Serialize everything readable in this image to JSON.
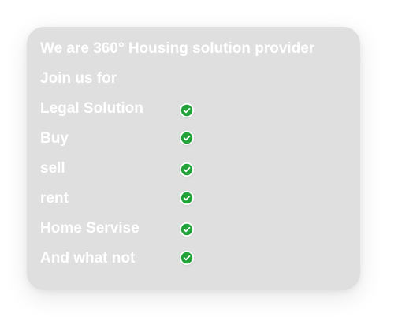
{
  "card": {
    "headline": "We are 360° Housing solution provider",
    "subhead": "Join us for",
    "items": [
      {
        "label": "Legal Solution",
        "icon": "check-circle-icon"
      },
      {
        "label": "Buy",
        "icon": "check-circle-icon"
      },
      {
        "label": "sell",
        "icon": "check-circle-icon"
      },
      {
        "label": "rent",
        "icon": "check-circle-icon"
      },
      {
        "label": "Home Servise",
        "icon": "check-circle-icon"
      },
      {
        "label": "And what not",
        "icon": "check-circle-icon"
      }
    ]
  },
  "colors": {
    "card_background": "#dfdfdf",
    "text": "#ffffff",
    "check_green": "#22a33a"
  }
}
